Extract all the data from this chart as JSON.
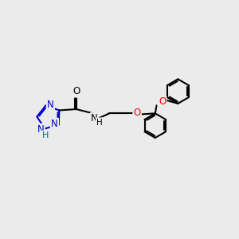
{
  "bg_color": "#ebebeb",
  "bond_color": "#000000",
  "triazole_N_color": "#0000cc",
  "triazole_H_color": "#007070",
  "O_color": "#ff0000",
  "NH_color": "#000000",
  "lw": 1.5,
  "fs": 8.5,
  "fig_size": [
    3.0,
    3.0
  ],
  "dpi": 100,
  "xlim": [
    0,
    10
  ],
  "ylim": [
    0,
    10
  ]
}
